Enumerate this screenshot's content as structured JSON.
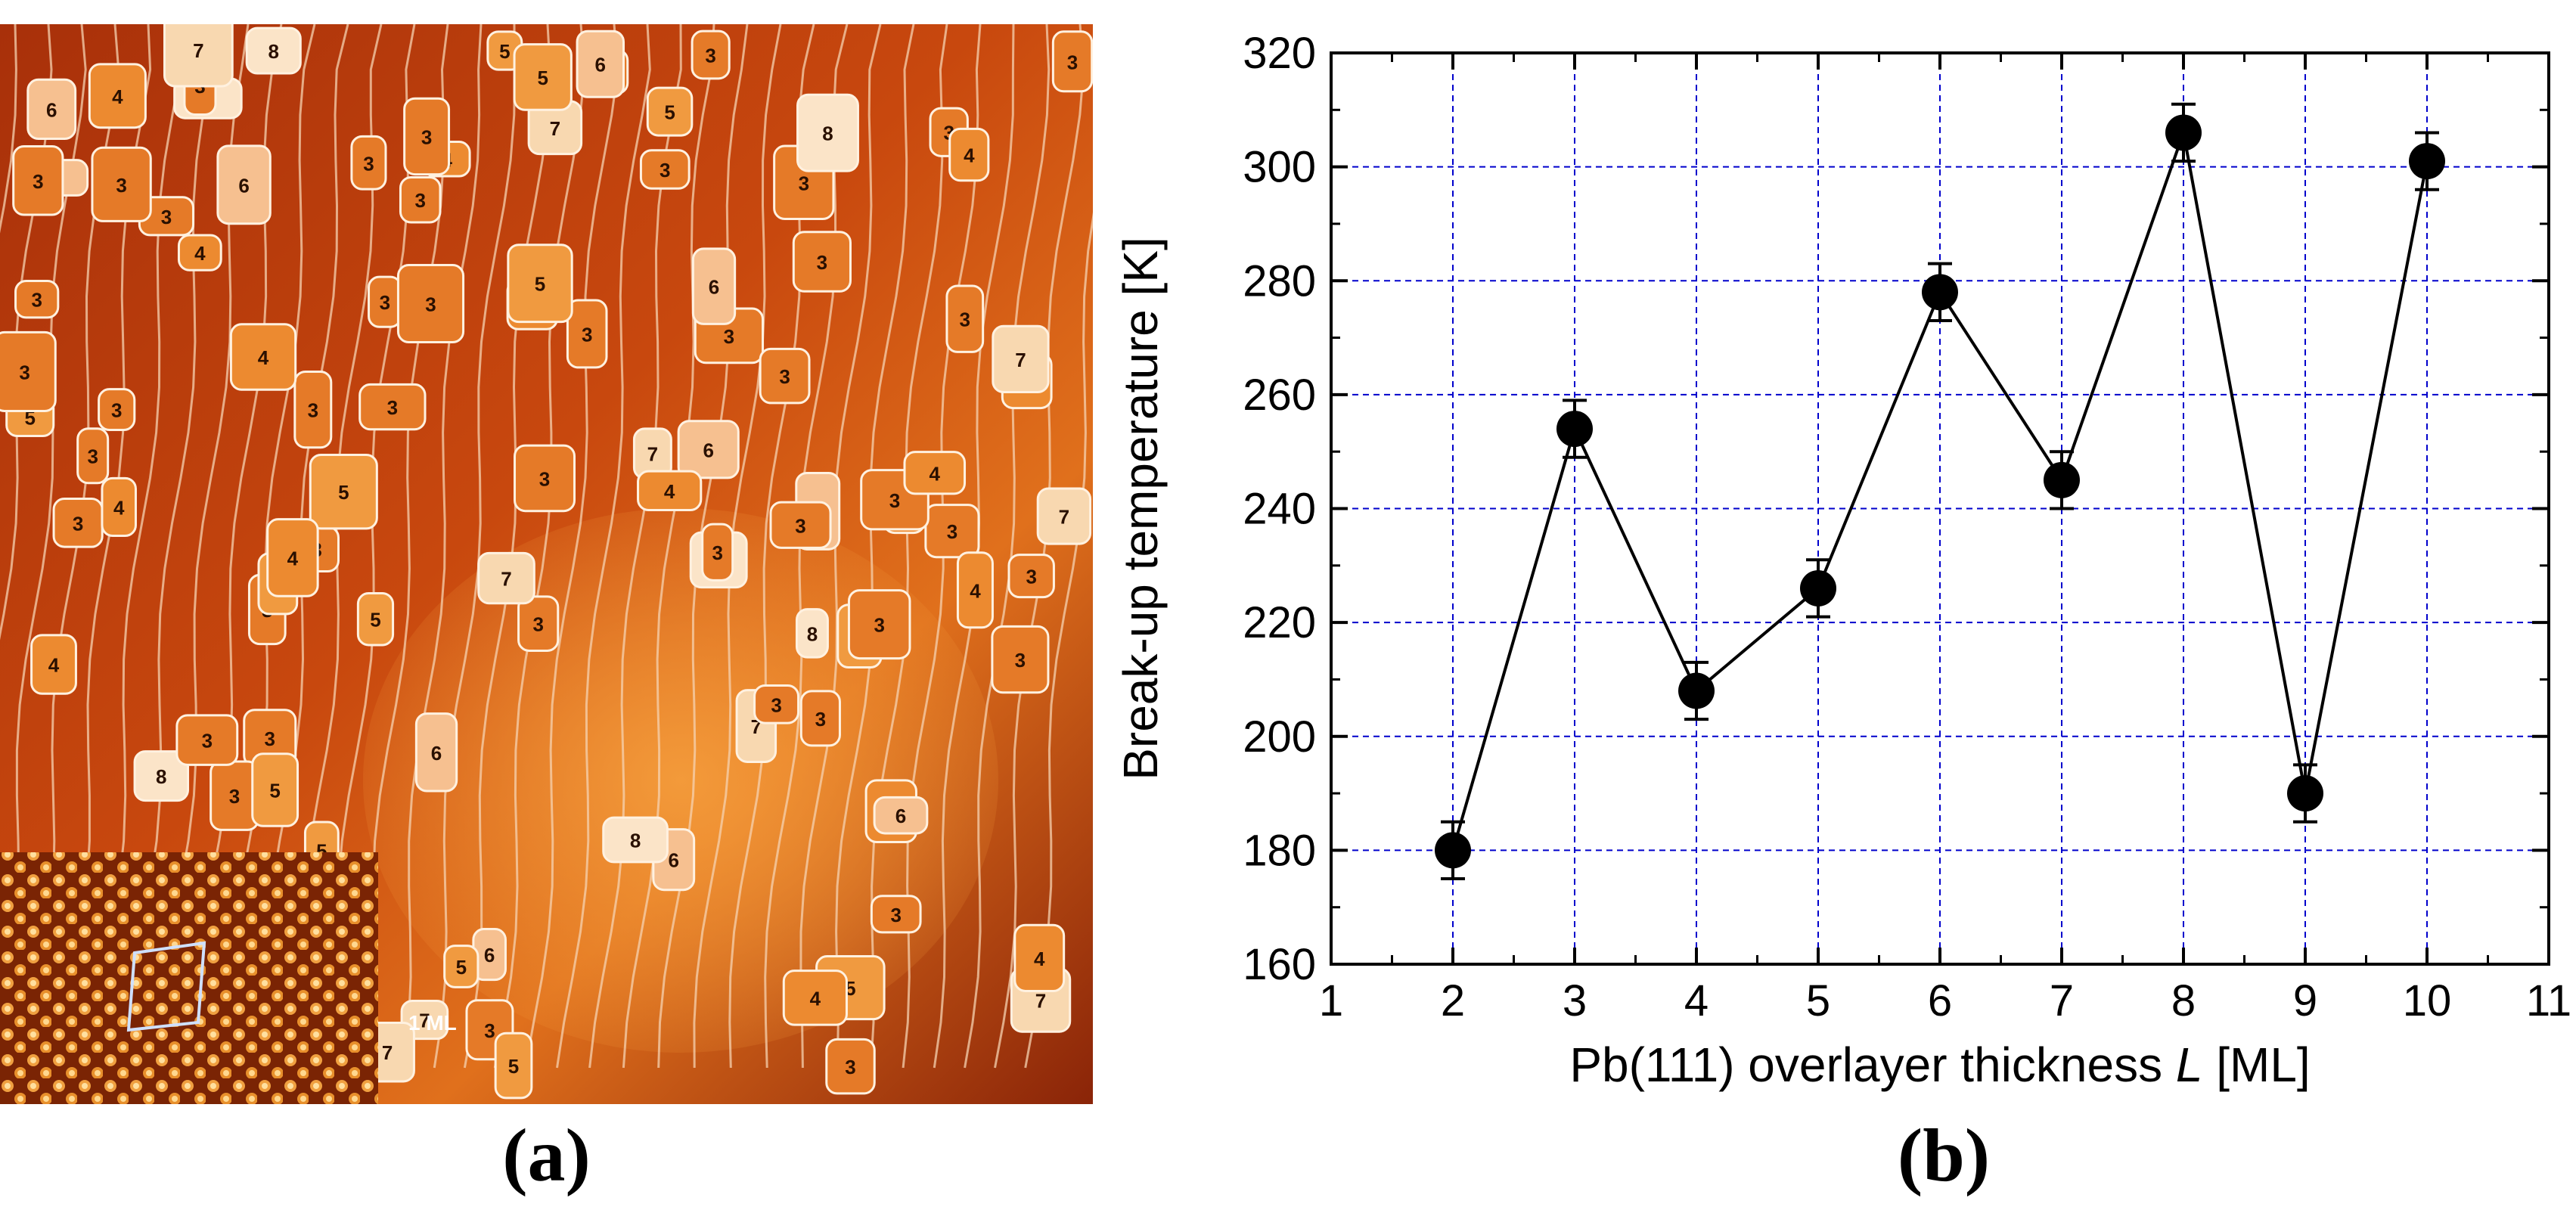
{
  "panel_a": {
    "caption": "(a)",
    "description_label": "1 ML",
    "island_labels": [
      "3",
      "4",
      "5",
      "6",
      "7",
      "8"
    ]
  },
  "panel_b": {
    "caption": "(b)"
  },
  "chart_data": {
    "type": "scatter",
    "connected": true,
    "xlabel_prefix": "Pb(111) overlayer thickness ",
    "xlabel_var": "L",
    "xlabel_suffix": " [ML]",
    "ylabel": "Break-up temperature [K]",
    "xlim": [
      1,
      11
    ],
    "ylim": [
      160,
      320
    ],
    "xticks": [
      1,
      2,
      3,
      4,
      5,
      6,
      7,
      8,
      9,
      10,
      11
    ],
    "yticks": [
      160,
      180,
      200,
      220,
      240,
      260,
      280,
      300,
      320
    ],
    "grid": true,
    "grid_color": "#0000cc",
    "marker_color": "#000000",
    "x": [
      2,
      3,
      4,
      5,
      6,
      7,
      8,
      9,
      10
    ],
    "y": [
      180,
      254,
      208,
      226,
      278,
      245,
      306,
      190,
      301
    ],
    "yerr": [
      5,
      5,
      5,
      5,
      5,
      5,
      5,
      5,
      5
    ]
  }
}
